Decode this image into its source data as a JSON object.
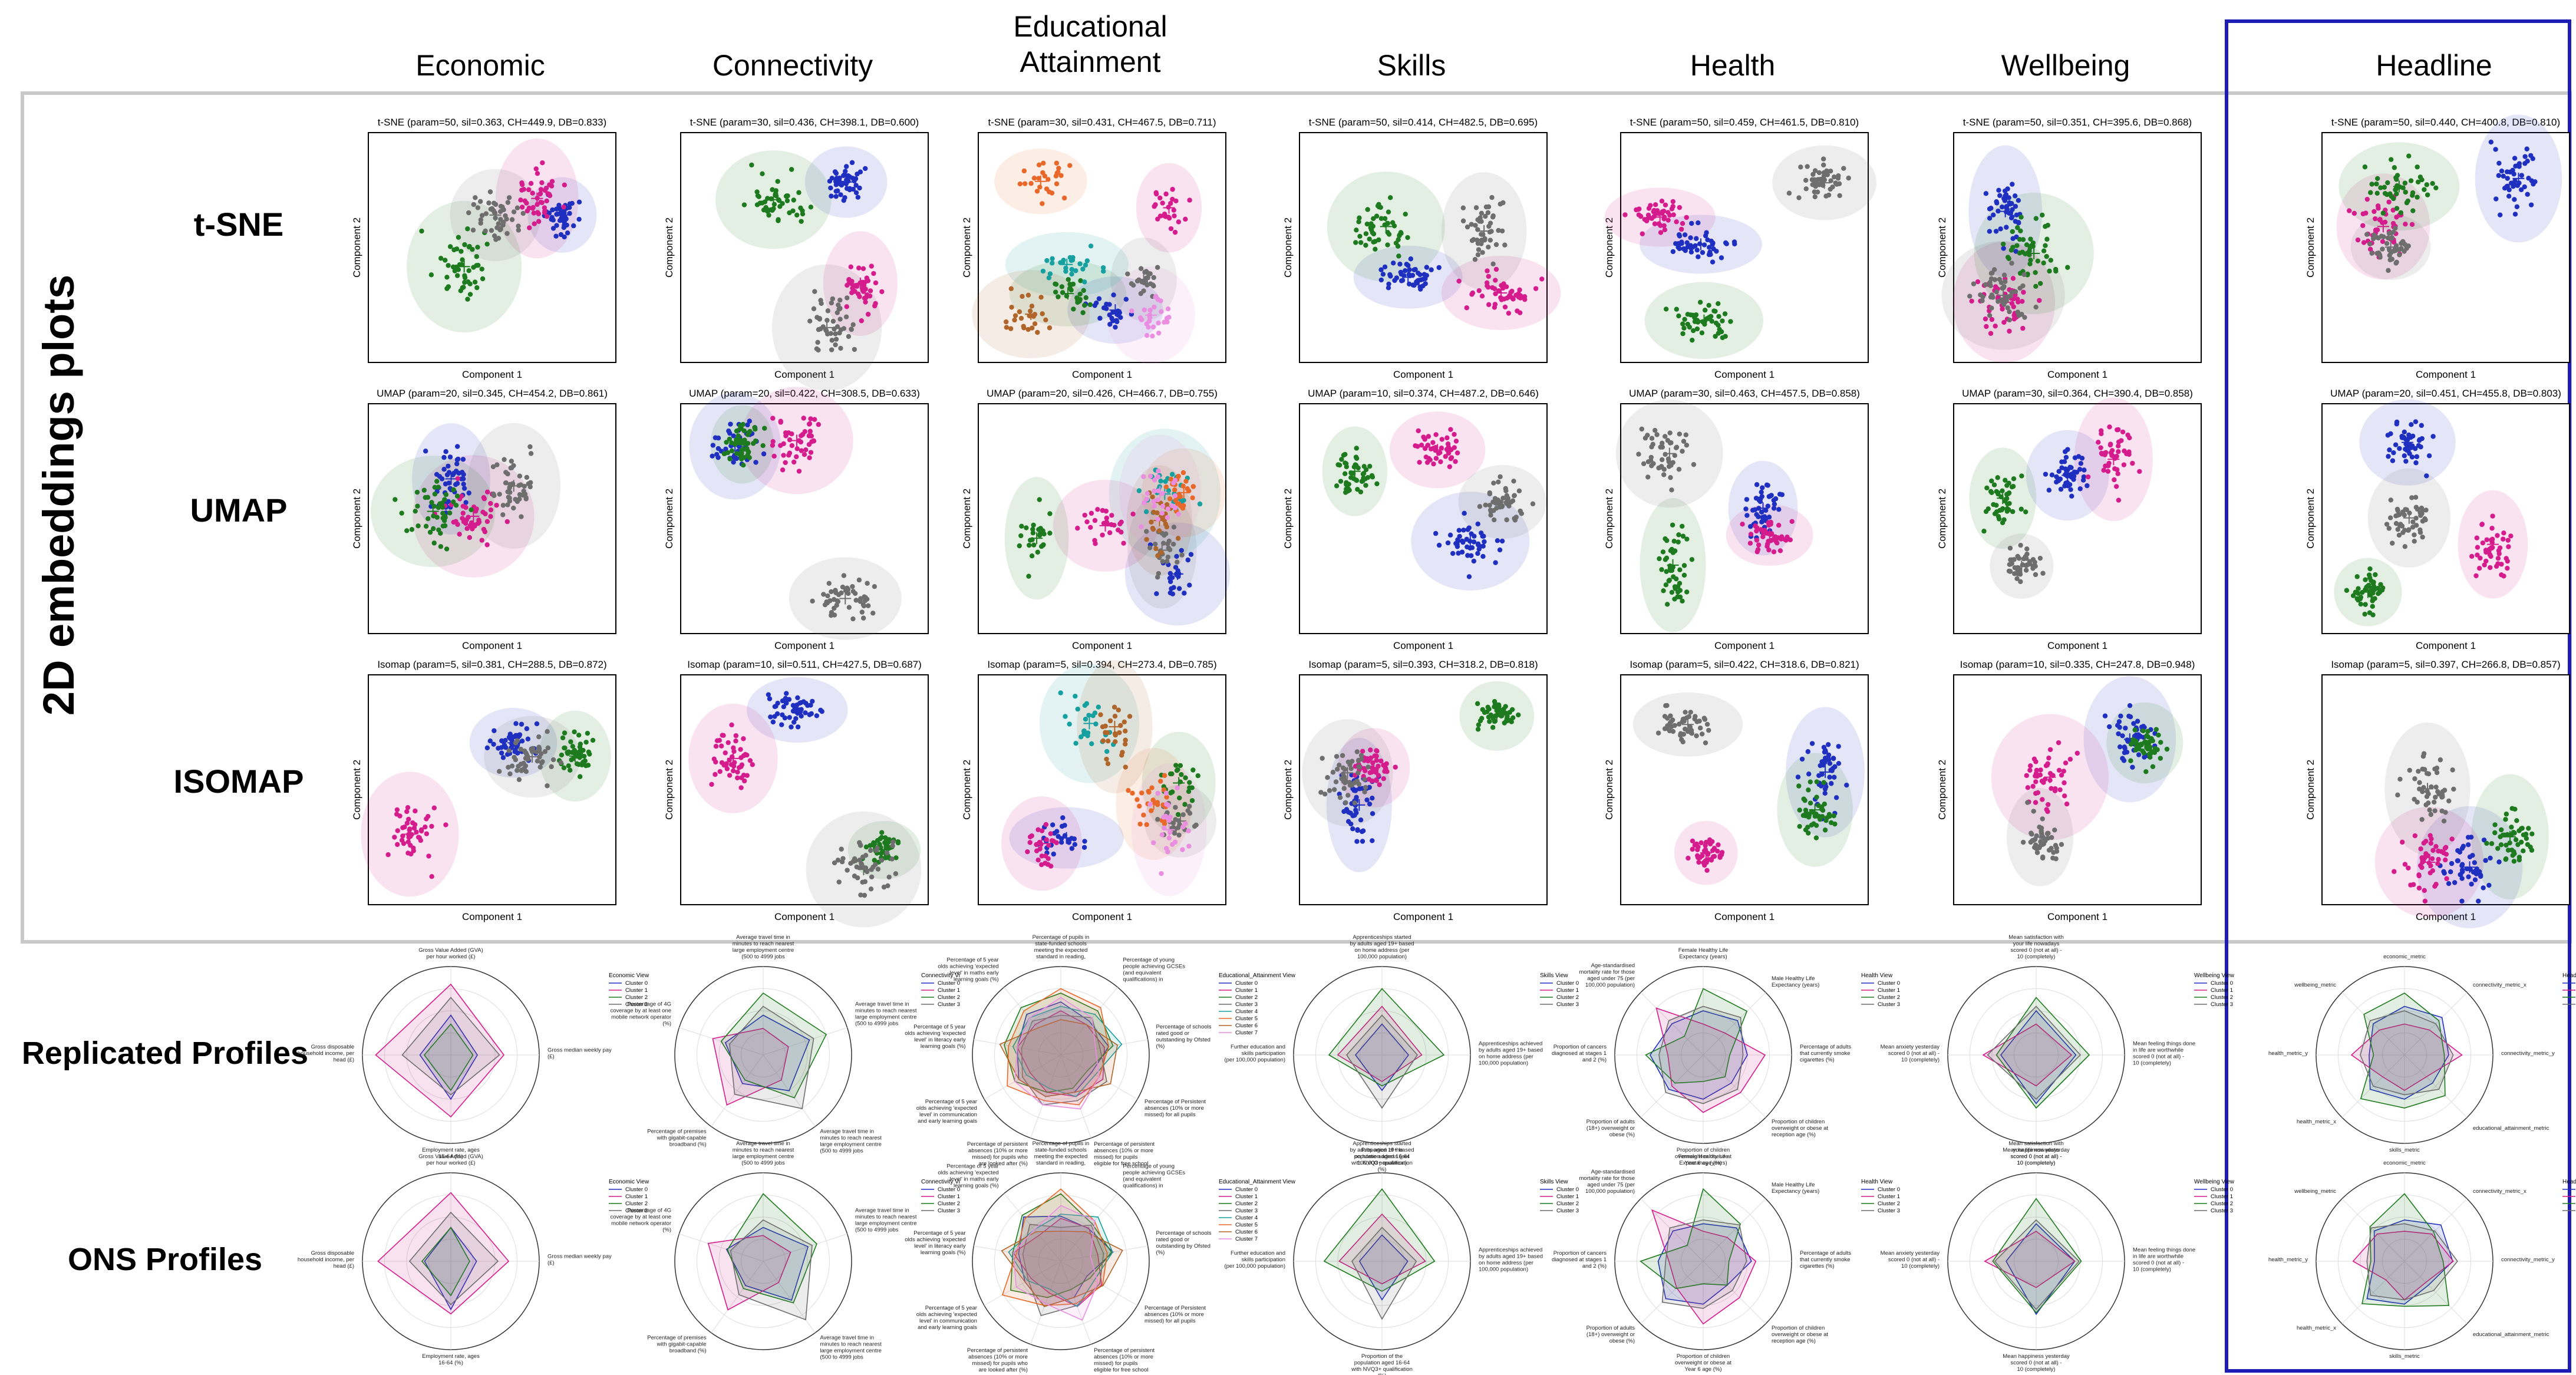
{
  "columns": [
    {
      "lines": [
        "Economic"
      ]
    },
    {
      "lines": [
        "Connectivity"
      ]
    },
    {
      "lines": [
        "Educational",
        "Attainment"
      ]
    },
    {
      "lines": [
        "Skills"
      ]
    },
    {
      "lines": [
        "Health"
      ]
    },
    {
      "lines": [
        "Wellbeing"
      ]
    },
    {
      "lines": [
        "Headline"
      ]
    }
  ],
  "side_title": "2D embeddings plots",
  "row_labels": [
    "t-SNE",
    "UMAP",
    "ISOMAP"
  ],
  "profile_row_labels": [
    "Replicated Profiles",
    "ONS Profiles"
  ],
  "axis_labels": {
    "x": "Component 1",
    "y": "Component 2"
  },
  "colors": {
    "cluster0": "#1f2fbf",
    "cluster1": "#d41c8c",
    "cluster2": "#1e7a1e",
    "cluster3": "#6e6e6e",
    "cluster4": "#17a0a0",
    "cluster5": "#e8682a",
    "cluster6": "#b0652a",
    "cluster7": "#e98ee0",
    "highlight_border": "#1d1db5",
    "panel_border": "#c8c8c8"
  },
  "chart_data": [
    {
      "type": "scatter",
      "grid": [
        [
          {
            "title": "t-SNE (param=50, sil=0.363, CH=449.9, DB=0.833)",
            "k": 4,
            "seed": 11
          },
          {
            "title": "t-SNE (param=30, sil=0.436, CH=398.1, DB=0.600)",
            "k": 4,
            "seed": 12
          },
          {
            "title": "t-SNE (param=30, sil=0.431, CH=467.5, DB=0.711)",
            "k": 8,
            "seed": 13
          },
          {
            "title": "t-SNE (param=50, sil=0.414, CH=482.5, DB=0.695)",
            "k": 4,
            "seed": 14
          },
          {
            "title": "t-SNE (param=50, sil=0.459, CH=461.5, DB=0.810)",
            "k": 4,
            "seed": 15
          },
          {
            "title": "t-SNE (param=50, sil=0.351, CH=395.6, DB=0.868)",
            "k": 4,
            "seed": 16
          },
          {
            "title": "t-SNE (param=50, sil=0.440, CH=400.8, DB=0.810)",
            "k": 4,
            "seed": 17
          }
        ],
        [
          {
            "title": "UMAP (param=20, sil=0.345, CH=454.2, DB=0.861)",
            "k": 4,
            "seed": 21
          },
          {
            "title": "UMAP (param=20, sil=0.422, CH=308.5, DB=0.633)",
            "k": 4,
            "seed": 22
          },
          {
            "title": "UMAP (param=20, sil=0.426, CH=466.7, DB=0.755)",
            "k": 8,
            "seed": 23
          },
          {
            "title": "UMAP (param=10, sil=0.374, CH=487.2, DB=0.646)",
            "k": 4,
            "seed": 24
          },
          {
            "title": "UMAP (param=30, sil=0.463, CH=457.5, DB=0.858)",
            "k": 4,
            "seed": 25
          },
          {
            "title": "UMAP (param=30, sil=0.364, CH=390.4, DB=0.858)",
            "k": 4,
            "seed": 26
          },
          {
            "title": "UMAP (param=20, sil=0.451, CH=455.8, DB=0.803)",
            "k": 4,
            "seed": 27
          }
        ],
        [
          {
            "title": "Isomap (param=5, sil=0.381, CH=288.5, DB=0.872)",
            "k": 4,
            "seed": 31
          },
          {
            "title": "Isomap (param=10, sil=0.511, CH=427.5, DB=0.687)",
            "k": 4,
            "seed": 32
          },
          {
            "title": "Isomap (param=5, sil=0.394, CH=273.4, DB=0.785)",
            "k": 8,
            "seed": 33
          },
          {
            "title": "Isomap (param=5, sil=0.393, CH=318.2, DB=0.818)",
            "k": 4,
            "seed": 34
          },
          {
            "title": "Isomap (param=5, sil=0.422, CH=318.6, DB=0.821)",
            "k": 4,
            "seed": 35
          },
          {
            "title": "Isomap (param=10, sil=0.335, CH=247.8, DB=0.948)",
            "k": 4,
            "seed": 36
          },
          {
            "title": "Isomap (param=5, sil=0.397, CH=266.8, DB=0.857)",
            "k": 4,
            "seed": 37
          }
        ]
      ]
    },
    {
      "type": "radar",
      "columns": [
        {
          "legend_title": "Economic View",
          "axes": [
            "Gross Value Added (GVA) per hour worked (£)",
            "Gross median weekly pay (£)",
            "Employment rate, ages 16-64 (%)",
            "Gross disposable household income, per head (£)"
          ],
          "series": [
            {
              "name": "Cluster 0",
              "values": [
                0.45,
                0.3,
                0.5,
                0.35
              ]
            },
            {
              "name": "Cluster 1",
              "values": [
                0.8,
                0.6,
                0.7,
                0.85
              ]
            },
            {
              "name": "Cluster 2",
              "values": [
                0.35,
                0.25,
                0.4,
                0.3
              ]
            },
            {
              "name": "Cluster 3",
              "values": [
                0.65,
                0.55,
                0.45,
                0.55
              ]
            }
          ]
        },
        {
          "legend_title": "Connectivity Vi",
          "axes": [
            "Average travel time in minutes to reach nearest large employment centre (500 to 4999 jobs available), by public transport or walking (minutes)",
            "Average travel time in minutes to reach nearest large employment centre (500 to 4999 jobs available), by car (minutes)",
            "Average travel time in minutes to reach nearest large employment centre (500 to 4999 jobs available), by cycle (minutes)",
            "Percentage of premises with gigabit-capable broadband (%)",
            "Percentage of 4G coverage by at least one mobile network operator (%)"
          ],
          "series": [
            {
              "name": "Cluster 0",
              "values": [
                0.45,
                0.55,
                0.5,
                0.4,
                0.45
              ]
            },
            {
              "name": "Cluster 1",
              "values": [
                0.3,
                0.3,
                0.35,
                0.7,
                0.6
              ]
            },
            {
              "name": "Cluster 2",
              "values": [
                0.7,
                0.75,
                0.6,
                0.35,
                0.5
              ]
            },
            {
              "name": "Cluster 3",
              "values": [
                0.55,
                0.6,
                0.75,
                0.55,
                0.4
              ]
            }
          ]
        },
        {
          "legend_title": "Educational_Attainment View",
          "axes": [
            "Percentage of pupils in state-funded schools meeting the expected standard in reading, writing and maths by end of primary school (%)",
            "Percentage of young people achieving GCSEs (and equivalent qualifications) in English and maths by age 19 (%)",
            "Percentage of schools rated good or outstanding by Ofsted (%)",
            "Percentage of Persistent absences (10% or more missed) for all pupils",
            "Percentage of persistent absences (10% or more missed) for pupils eligible for free school meals in the past 6 years (%)",
            "Percentage of persistent absences (10% or more missed) for pupils who are looked after (%)",
            "Percentage of 5 year olds achieving 'expected level' in communication and early learning goals (%)",
            "Percentage of 5 year olds achieving 'expected level' in literacy early learning goals (%)",
            "Percentage of 5 year olds achieving 'expected level' in maths early learning goals (%)"
          ],
          "series": [
            {
              "name": "Cluster 0",
              "values": [
                0.6,
                0.5,
                0.55,
                0.4,
                0.45,
                0.5,
                0.55,
                0.5,
                0.6
              ]
            },
            {
              "name": "Cluster 1",
              "values": [
                0.5,
                0.45,
                0.5,
                0.55,
                0.5,
                0.45,
                0.4,
                0.5,
                0.45
              ]
            },
            {
              "name": "Cluster 2",
              "values": [
                0.7,
                0.65,
                0.6,
                0.35,
                0.4,
                0.45,
                0.6,
                0.65,
                0.7
              ]
            },
            {
              "name": "Cluster 3",
              "values": [
                0.45,
                0.55,
                0.45,
                0.6,
                0.55,
                0.6,
                0.5,
                0.45,
                0.5
              ]
            },
            {
              "name": "Cluster 4",
              "values": [
                0.55,
                0.6,
                0.7,
                0.45,
                0.5,
                0.4,
                0.45,
                0.55,
                0.55
              ]
            },
            {
              "name": "Cluster 5",
              "values": [
                0.75,
                0.7,
                0.55,
                0.5,
                0.6,
                0.55,
                0.7,
                0.6,
                0.65
              ]
            },
            {
              "name": "Cluster 6",
              "values": [
                0.4,
                0.45,
                0.65,
                0.65,
                0.45,
                0.5,
                0.55,
                0.7,
                0.4
              ]
            },
            {
              "name": "Cluster 7",
              "values": [
                0.65,
                0.55,
                0.4,
                0.5,
                0.65,
                0.6,
                0.6,
                0.5,
                0.55
              ]
            }
          ]
        },
        {
          "legend_title": "Skills View",
          "axes": [
            "Apprenticeships started by adults aged 19+ based on home address (per 100,000 population)",
            "Apprenticeships achieved by adults aged 19+ based on home address (per 100,000 population)",
            "Proportion of the population aged 16-64 with NVQ3+ qualification (%)",
            "Further education and skills participation (per 100,000 population)"
          ],
          "series": [
            {
              "name": "Cluster 0",
              "values": [
                0.35,
                0.3,
                0.4,
                0.3
              ]
            },
            {
              "name": "Cluster 1",
              "values": [
                0.55,
                0.45,
                0.3,
                0.5
              ]
            },
            {
              "name": "Cluster 2",
              "values": [
                0.75,
                0.7,
                0.35,
                0.6
              ]
            },
            {
              "name": "Cluster 3",
              "values": [
                0.45,
                0.4,
                0.6,
                0.4
              ]
            }
          ]
        },
        {
          "legend_title": "Health View",
          "axes": [
            "Female Healthy Life Expectancy (years)",
            "Male Healthy Life Expectancy (years)",
            "Percentage of adults that currently smoke cigarettes (%)",
            "Proportion of children overweight or obese at reception age (%)",
            "Proportion of children overweight or obese at Year 6 age (%)",
            "Proportion of adults (18+) overweight or obese (%)",
            "Proportion of cancers diagnosed at stages 1 and 2 (%)",
            "Age-standardised mortality rate for those aged under 75 (per 100,000 population)"
          ],
          "series": [
            {
              "name": "Cluster 0",
              "values": [
                0.5,
                0.55,
                0.5,
                0.45,
                0.5,
                0.55,
                0.6,
                0.5
              ]
            },
            {
              "name": "Cluster 1",
              "values": [
                0.35,
                0.35,
                0.7,
                0.6,
                0.65,
                0.5,
                0.4,
                0.75
              ]
            },
            {
              "name": "Cluster 2",
              "values": [
                0.75,
                0.7,
                0.3,
                0.35,
                0.3,
                0.45,
                0.65,
                0.3
              ]
            },
            {
              "name": "Cluster 3",
              "values": [
                0.55,
                0.6,
                0.45,
                0.55,
                0.55,
                0.6,
                0.5,
                0.55
              ]
            }
          ]
        },
        {
          "legend_title": "Wellbeing View",
          "axes": [
            "Mean satisfaction with your life nowadays scored 0 (not at all) - 10 (completely)",
            "Mean feeling things done in life are worthwhile scored 0 (not at all) - 10 (completely)",
            "Mean happiness yesterday scored 0 (not at all) - 10 (completely)",
            "Mean anxiety yesterday scored 0 (not at all) - 10 (completely)"
          ],
          "series": [
            {
              "name": "Cluster 0",
              "values": [
                0.5,
                0.45,
                0.55,
                0.4
              ]
            },
            {
              "name": "Cluster 1",
              "values": [
                0.35,
                0.4,
                0.35,
                0.6
              ]
            },
            {
              "name": "Cluster 2",
              "values": [
                0.65,
                0.6,
                0.6,
                0.45
              ]
            },
            {
              "name": "Cluster 3",
              "values": [
                0.55,
                0.5,
                0.5,
                0.55
              ]
            }
          ]
        },
        {
          "legend_title": "Headline View",
          "axes": [
            "economic_metric",
            "connectivity_metric_x",
            "connectivity_metric_y",
            "educational_attainment_metric",
            "skills_metric",
            "health_metric_x",
            "health_metric_y",
            "wellbeing_metric"
          ],
          "series": [
            {
              "name": "Cluster 0",
              "values": [
                0.55,
                0.6,
                0.5,
                0.45,
                0.5,
                0.55,
                0.4,
                0.5
              ]
            },
            {
              "name": "Cluster 1",
              "values": [
                0.35,
                0.4,
                0.65,
                0.35,
                0.4,
                0.35,
                0.6,
                0.4
              ]
            },
            {
              "name": "Cluster 2",
              "values": [
                0.7,
                0.55,
                0.45,
                0.65,
                0.6,
                0.7,
                0.35,
                0.65
              ]
            },
            {
              "name": "Cluster 3",
              "values": [
                0.5,
                0.5,
                0.55,
                0.55,
                0.45,
                0.5,
                0.5,
                0.55
              ]
            }
          ]
        }
      ]
    }
  ]
}
